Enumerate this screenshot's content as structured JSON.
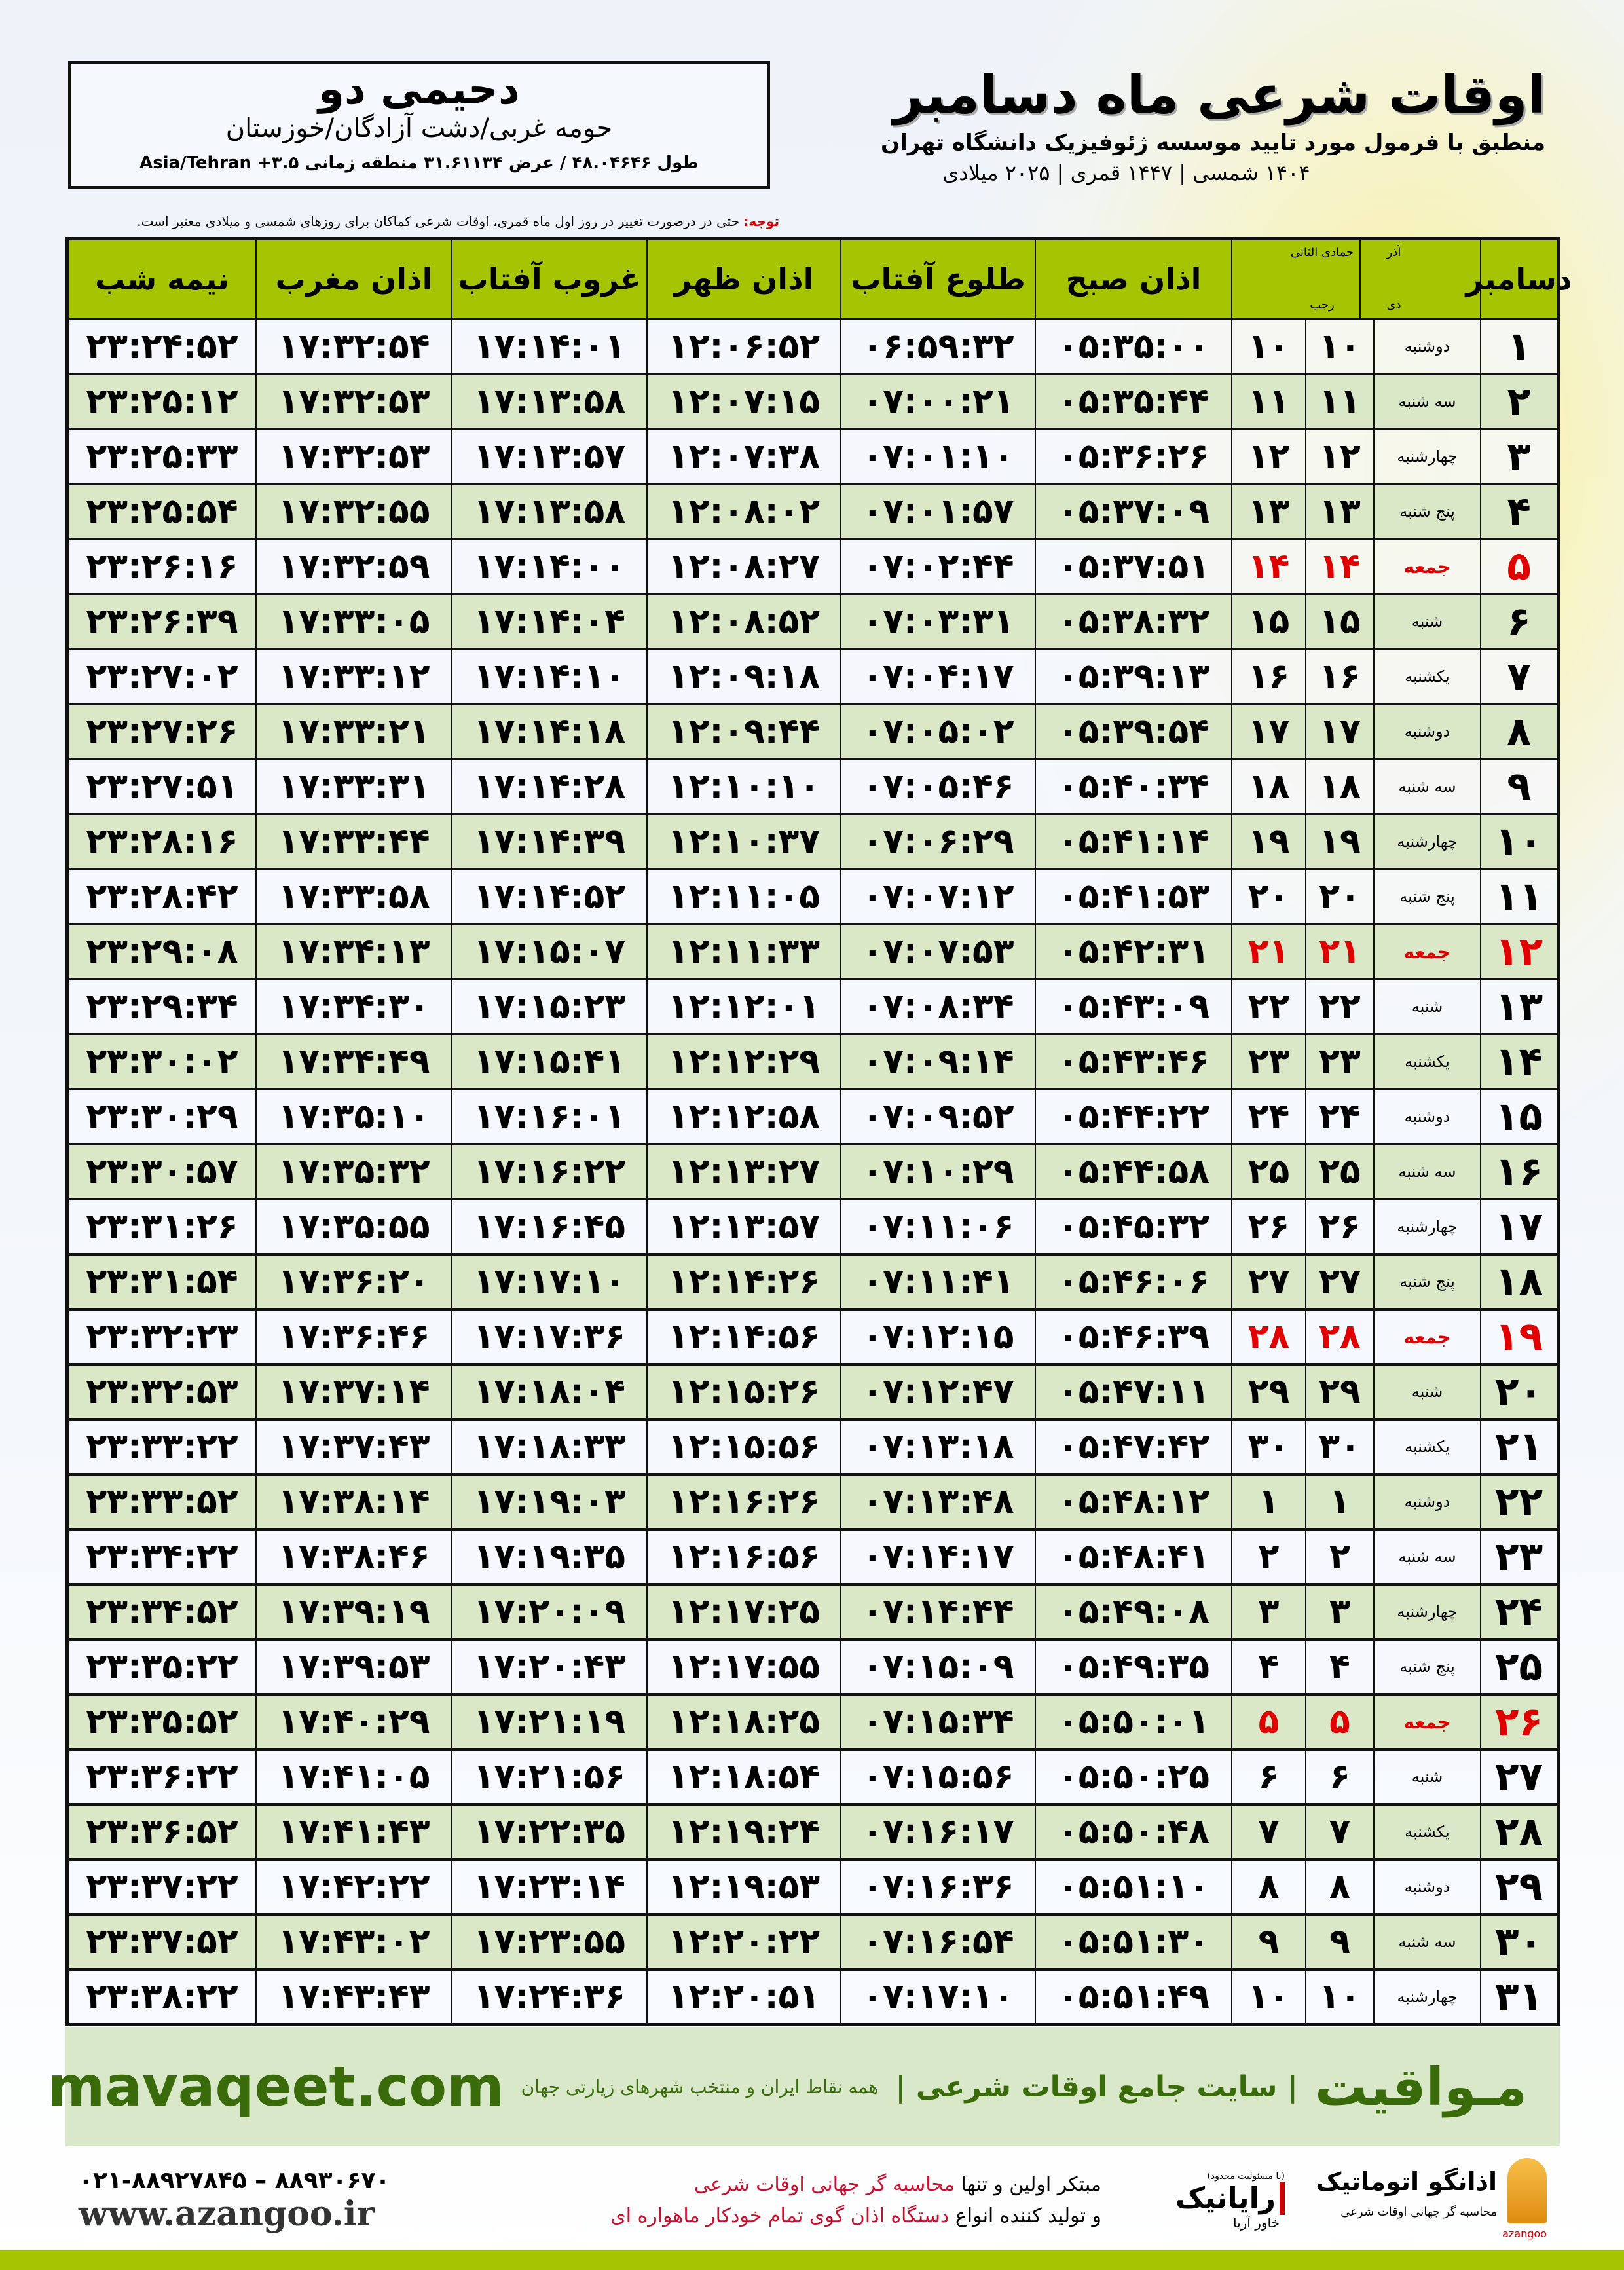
{
  "location": {
    "name": "دحیمی دو",
    "region": "حومه غربی/دشت آزادگان/خوزستان",
    "coords": "طول ۴۸.۰۴۶۴۶ / عرض ۳۱.۶۱۱۳۴ منطقه زمانی Asia/Tehran +۳.۵"
  },
  "title": {
    "main": "اوقات شرعی ماه دسامبر",
    "subtitle": "منطبق با فرمول مورد تایید موسسه ژئوفیزیک دانشگاه تهران",
    "years": "۱۴۰۴ شمسی | ۱۴۴۷ قمری | ۲۰۲۵ میلادی"
  },
  "note": {
    "label": "توجه:",
    "text": " حتی در درصورت تغییر در روز اول ماه قمری، اوقات شرعی کماکان برای روزهای شمسی و میلادی معتبر است."
  },
  "table": {
    "headers": {
      "month": "دسامبر",
      "persian_months": "آذر",
      "persian_month2": "دی",
      "hijri_months": "جمادی الثانی",
      "hijri_month2": "رجب",
      "fajr": "اذان صبح",
      "sunrise": "طلوع آفتاب",
      "dhuhr": "اذان ظهر",
      "sunset": "غروب آفتاب",
      "maghrib": "اذان مغرب",
      "midnight": "نیمه شب"
    },
    "accent_friday": "#e00000",
    "header_color": "#a6c400",
    "rows": [
      {
        "day": "۱",
        "weekday": "دوشنبه",
        "persian": "۱۰",
        "hijri": "۱۰",
        "fajr": "۰۵:۳۵:۰۰",
        "sunrise": "۰۶:۵۹:۳۲",
        "dhuhr": "۱۲:۰۶:۵۲",
        "sunset": "۱۷:۱۴:۰۱",
        "maghrib": "۱۷:۳۲:۵۴",
        "midnight": "۲۳:۲۴:۵۲"
      },
      {
        "day": "۲",
        "weekday": "سه شنبه",
        "persian": "۱۱",
        "hijri": "۱۱",
        "fajr": "۰۵:۳۵:۴۴",
        "sunrise": "۰۷:۰۰:۲۱",
        "dhuhr": "۱۲:۰۷:۱۵",
        "sunset": "۱۷:۱۳:۵۸",
        "maghrib": "۱۷:۳۲:۵۳",
        "midnight": "۲۳:۲۵:۱۲"
      },
      {
        "day": "۳",
        "weekday": "چهارشنبه",
        "persian": "۱۲",
        "hijri": "۱۲",
        "fajr": "۰۵:۳۶:۲۶",
        "sunrise": "۰۷:۰۱:۱۰",
        "dhuhr": "۱۲:۰۷:۳۸",
        "sunset": "۱۷:۱۳:۵۷",
        "maghrib": "۱۷:۳۲:۵۳",
        "midnight": "۲۳:۲۵:۳۳"
      },
      {
        "day": "۴",
        "weekday": "پنج شنبه",
        "persian": "۱۳",
        "hijri": "۱۳",
        "fajr": "۰۵:۳۷:۰۹",
        "sunrise": "۰۷:۰۱:۵۷",
        "dhuhr": "۱۲:۰۸:۰۲",
        "sunset": "۱۷:۱۳:۵۸",
        "maghrib": "۱۷:۳۲:۵۵",
        "midnight": "۲۳:۲۵:۵۴"
      },
      {
        "day": "۵",
        "weekday": "جمعه",
        "persian": "۱۴",
        "hijri": "۱۴",
        "fajr": "۰۵:۳۷:۵۱",
        "sunrise": "۰۷:۰۲:۴۴",
        "dhuhr": "۱۲:۰۸:۲۷",
        "sunset": "۱۷:۱۴:۰۰",
        "maghrib": "۱۷:۳۲:۵۹",
        "midnight": "۲۳:۲۶:۱۶",
        "friday": true
      },
      {
        "day": "۶",
        "weekday": "شنبه",
        "persian": "۱۵",
        "hijri": "۱۵",
        "fajr": "۰۵:۳۸:۳۲",
        "sunrise": "۰۷:۰۳:۳۱",
        "dhuhr": "۱۲:۰۸:۵۲",
        "sunset": "۱۷:۱۴:۰۴",
        "maghrib": "۱۷:۳۳:۰۵",
        "midnight": "۲۳:۲۶:۳۹"
      },
      {
        "day": "۷",
        "weekday": "یکشنبه",
        "persian": "۱۶",
        "hijri": "۱۶",
        "fajr": "۰۵:۳۹:۱۳",
        "sunrise": "۰۷:۰۴:۱۷",
        "dhuhr": "۱۲:۰۹:۱۸",
        "sunset": "۱۷:۱۴:۱۰",
        "maghrib": "۱۷:۳۳:۱۲",
        "midnight": "۲۳:۲۷:۰۲"
      },
      {
        "day": "۸",
        "weekday": "دوشنبه",
        "persian": "۱۷",
        "hijri": "۱۷",
        "fajr": "۰۵:۳۹:۵۴",
        "sunrise": "۰۷:۰۵:۰۲",
        "dhuhr": "۱۲:۰۹:۴۴",
        "sunset": "۱۷:۱۴:۱۸",
        "maghrib": "۱۷:۳۳:۲۱",
        "midnight": "۲۳:۲۷:۲۶"
      },
      {
        "day": "۹",
        "weekday": "سه شنبه",
        "persian": "۱۸",
        "hijri": "۱۸",
        "fajr": "۰۵:۴۰:۳۴",
        "sunrise": "۰۷:۰۵:۴۶",
        "dhuhr": "۱۲:۱۰:۱۰",
        "sunset": "۱۷:۱۴:۲۸",
        "maghrib": "۱۷:۳۳:۳۱",
        "midnight": "۲۳:۲۷:۵۱"
      },
      {
        "day": "۱۰",
        "weekday": "چهارشنبه",
        "persian": "۱۹",
        "hijri": "۱۹",
        "fajr": "۰۵:۴۱:۱۴",
        "sunrise": "۰۷:۰۶:۲۹",
        "dhuhr": "۱۲:۱۰:۳۷",
        "sunset": "۱۷:۱۴:۳۹",
        "maghrib": "۱۷:۳۳:۴۴",
        "midnight": "۲۳:۲۸:۱۶"
      },
      {
        "day": "۱۱",
        "weekday": "پنج شنبه",
        "persian": "۲۰",
        "hijri": "۲۰",
        "fajr": "۰۵:۴۱:۵۳",
        "sunrise": "۰۷:۰۷:۱۲",
        "dhuhr": "۱۲:۱۱:۰۵",
        "sunset": "۱۷:۱۴:۵۲",
        "maghrib": "۱۷:۳۳:۵۸",
        "midnight": "۲۳:۲۸:۴۲"
      },
      {
        "day": "۱۲",
        "weekday": "جمعه",
        "persian": "۲۱",
        "hijri": "۲۱",
        "fajr": "۰۵:۴۲:۳۱",
        "sunrise": "۰۷:۰۷:۵۳",
        "dhuhr": "۱۲:۱۱:۳۳",
        "sunset": "۱۷:۱۵:۰۷",
        "maghrib": "۱۷:۳۴:۱۳",
        "midnight": "۲۳:۲۹:۰۸",
        "friday": true
      },
      {
        "day": "۱۳",
        "weekday": "شنبه",
        "persian": "۲۲",
        "hijri": "۲۲",
        "fajr": "۰۵:۴۳:۰۹",
        "sunrise": "۰۷:۰۸:۳۴",
        "dhuhr": "۱۲:۱۲:۰۱",
        "sunset": "۱۷:۱۵:۲۳",
        "maghrib": "۱۷:۳۴:۳۰",
        "midnight": "۲۳:۲۹:۳۴"
      },
      {
        "day": "۱۴",
        "weekday": "یکشنبه",
        "persian": "۲۳",
        "hijri": "۲۳",
        "fajr": "۰۵:۴۳:۴۶",
        "sunrise": "۰۷:۰۹:۱۴",
        "dhuhr": "۱۲:۱۲:۲۹",
        "sunset": "۱۷:۱۵:۴۱",
        "maghrib": "۱۷:۳۴:۴۹",
        "midnight": "۲۳:۳۰:۰۲"
      },
      {
        "day": "۱۵",
        "weekday": "دوشنبه",
        "persian": "۲۴",
        "hijri": "۲۴",
        "fajr": "۰۵:۴۴:۲۲",
        "sunrise": "۰۷:۰۹:۵۲",
        "dhuhr": "۱۲:۱۲:۵۸",
        "sunset": "۱۷:۱۶:۰۱",
        "maghrib": "۱۷:۳۵:۱۰",
        "midnight": "۲۳:۳۰:۲۹"
      },
      {
        "day": "۱۶",
        "weekday": "سه شنبه",
        "persian": "۲۵",
        "hijri": "۲۵",
        "fajr": "۰۵:۴۴:۵۸",
        "sunrise": "۰۷:۱۰:۲۹",
        "dhuhr": "۱۲:۱۳:۲۷",
        "sunset": "۱۷:۱۶:۲۲",
        "maghrib": "۱۷:۳۵:۳۲",
        "midnight": "۲۳:۳۰:۵۷"
      },
      {
        "day": "۱۷",
        "weekday": "چهارشنبه",
        "persian": "۲۶",
        "hijri": "۲۶",
        "fajr": "۰۵:۴۵:۳۲",
        "sunrise": "۰۷:۱۱:۰۶",
        "dhuhr": "۱۲:۱۳:۵۷",
        "sunset": "۱۷:۱۶:۴۵",
        "maghrib": "۱۷:۳۵:۵۵",
        "midnight": "۲۳:۳۱:۲۶"
      },
      {
        "day": "۱۸",
        "weekday": "پنج شنبه",
        "persian": "۲۷",
        "hijri": "۲۷",
        "fajr": "۰۵:۴۶:۰۶",
        "sunrise": "۰۷:۱۱:۴۱",
        "dhuhr": "۱۲:۱۴:۲۶",
        "sunset": "۱۷:۱۷:۱۰",
        "maghrib": "۱۷:۳۶:۲۰",
        "midnight": "۲۳:۳۱:۵۴"
      },
      {
        "day": "۱۹",
        "weekday": "جمعه",
        "persian": "۲۸",
        "hijri": "۲۸",
        "fajr": "۰۵:۴۶:۳۹",
        "sunrise": "۰۷:۱۲:۱۵",
        "dhuhr": "۱۲:۱۴:۵۶",
        "sunset": "۱۷:۱۷:۳۶",
        "maghrib": "۱۷:۳۶:۴۶",
        "midnight": "۲۳:۳۲:۲۳",
        "friday": true
      },
      {
        "day": "۲۰",
        "weekday": "شنبه",
        "persian": "۲۹",
        "hijri": "۲۹",
        "fajr": "۰۵:۴۷:۱۱",
        "sunrise": "۰۷:۱۲:۴۷",
        "dhuhr": "۱۲:۱۵:۲۶",
        "sunset": "۱۷:۱۸:۰۴",
        "maghrib": "۱۷:۳۷:۱۴",
        "midnight": "۲۳:۳۲:۵۳"
      },
      {
        "day": "۲۱",
        "weekday": "یکشنبه",
        "persian": "۳۰",
        "hijri": "۳۰",
        "fajr": "۰۵:۴۷:۴۲",
        "sunrise": "۰۷:۱۳:۱۸",
        "dhuhr": "۱۲:۱۵:۵۶",
        "sunset": "۱۷:۱۸:۳۳",
        "maghrib": "۱۷:۳۷:۴۳",
        "midnight": "۲۳:۳۳:۲۲"
      },
      {
        "day": "۲۲",
        "weekday": "دوشنبه",
        "persian": "۱",
        "hijri": "۱",
        "fajr": "۰۵:۴۸:۱۲",
        "sunrise": "۰۷:۱۳:۴۸",
        "dhuhr": "۱۲:۱۶:۲۶",
        "sunset": "۱۷:۱۹:۰۳",
        "maghrib": "۱۷:۳۸:۱۴",
        "midnight": "۲۳:۳۳:۵۲"
      },
      {
        "day": "۲۳",
        "weekday": "سه شنبه",
        "persian": "۲",
        "hijri": "۲",
        "fajr": "۰۵:۴۸:۴۱",
        "sunrise": "۰۷:۱۴:۱۷",
        "dhuhr": "۱۲:۱۶:۵۶",
        "sunset": "۱۷:۱۹:۳۵",
        "maghrib": "۱۷:۳۸:۴۶",
        "midnight": "۲۳:۳۴:۲۲"
      },
      {
        "day": "۲۴",
        "weekday": "چهارشنبه",
        "persian": "۳",
        "hijri": "۳",
        "fajr": "۰۵:۴۹:۰۸",
        "sunrise": "۰۷:۱۴:۴۴",
        "dhuhr": "۱۲:۱۷:۲۵",
        "sunset": "۱۷:۲۰:۰۹",
        "maghrib": "۱۷:۳۹:۱۹",
        "midnight": "۲۳:۳۴:۵۲"
      },
      {
        "day": "۲۵",
        "weekday": "پنج شنبه",
        "persian": "۴",
        "hijri": "۴",
        "fajr": "۰۵:۴۹:۳۵",
        "sunrise": "۰۷:۱۵:۰۹",
        "dhuhr": "۱۲:۱۷:۵۵",
        "sunset": "۱۷:۲۰:۴۳",
        "maghrib": "۱۷:۳۹:۵۳",
        "midnight": "۲۳:۳۵:۲۲"
      },
      {
        "day": "۲۶",
        "weekday": "جمعه",
        "persian": "۵",
        "hijri": "۵",
        "fajr": "۰۵:۵۰:۰۱",
        "sunrise": "۰۷:۱۵:۳۴",
        "dhuhr": "۱۲:۱۸:۲۵",
        "sunset": "۱۷:۲۱:۱۹",
        "maghrib": "۱۷:۴۰:۲۹",
        "midnight": "۲۳:۳۵:۵۲",
        "friday": true
      },
      {
        "day": "۲۷",
        "weekday": "شنبه",
        "persian": "۶",
        "hijri": "۶",
        "fajr": "۰۵:۵۰:۲۵",
        "sunrise": "۰۷:۱۵:۵۶",
        "dhuhr": "۱۲:۱۸:۵۴",
        "sunset": "۱۷:۲۱:۵۶",
        "maghrib": "۱۷:۴۱:۰۵",
        "midnight": "۲۳:۳۶:۲۲"
      },
      {
        "day": "۲۸",
        "weekday": "یکشنبه",
        "persian": "۷",
        "hijri": "۷",
        "fajr": "۰۵:۵۰:۴۸",
        "sunrise": "۰۷:۱۶:۱۷",
        "dhuhr": "۱۲:۱۹:۲۴",
        "sunset": "۱۷:۲۲:۳۵",
        "maghrib": "۱۷:۴۱:۴۳",
        "midnight": "۲۳:۳۶:۵۲"
      },
      {
        "day": "۲۹",
        "weekday": "دوشنبه",
        "persian": "۸",
        "hijri": "۸",
        "fajr": "۰۵:۵۱:۱۰",
        "sunrise": "۰۷:۱۶:۳۶",
        "dhuhr": "۱۲:۱۹:۵۳",
        "sunset": "۱۷:۲۳:۱۴",
        "maghrib": "۱۷:۴۲:۲۲",
        "midnight": "۲۳:۳۷:۲۲"
      },
      {
        "day": "۳۰",
        "weekday": "سه شنبه",
        "persian": "۹",
        "hijri": "۹",
        "fajr": "۰۵:۵۱:۳۰",
        "sunrise": "۰۷:۱۶:۵۴",
        "dhuhr": "۱۲:۲۰:۲۲",
        "sunset": "۱۷:۲۳:۵۵",
        "maghrib": "۱۷:۴۳:۰۲",
        "midnight": "۲۳:۳۷:۵۲"
      },
      {
        "day": "۳۱",
        "weekday": "چهارشنبه",
        "persian": "۱۰",
        "hijri": "۱۰",
        "fajr": "۰۵:۵۱:۴۹",
        "sunrise": "۰۷:۱۷:۱۰",
        "dhuhr": "۱۲:۲۰:۵۱",
        "sunset": "۱۷:۲۴:۳۶",
        "maghrib": "۱۷:۴۳:۴۳",
        "midnight": "۲۳:۳۸:۲۲"
      }
    ]
  },
  "footer_band": {
    "brand": "مـواقیت",
    "slogan": "| سایت جامع اوقات شرعی |",
    "slogan2": "همه نقاط ایران و منتخب شهرهای زیارتی جهان",
    "url": "mavaqeet.com"
  },
  "bottom": {
    "logo1_title": "اذانگو اتوماتیک",
    "logo1_sub": "محاسبه گر جهانی اوقات شرعی",
    "logo1_latin": "azangoo",
    "logo2_small": "(با مسئولیت محدود)",
    "logo2_title": "رایانیک",
    "logo2_sub": "خاور آریا",
    "promo_line1_a": "مبتکر اولین و تنها ",
    "promo_line1_b": "محاسبه گر جهانی اوقات شرعی",
    "promo_line2_a": "و تولید کننده انواع ",
    "promo_line2_b": "دستگاه اذان گوی تمام خودکار ماهواره ای",
    "phone": "۰۲۱-۸۸۹۲۷۸۴۵ – ۸۸۹۳۰۶۷۰",
    "website": "www.azangoo.ir"
  }
}
